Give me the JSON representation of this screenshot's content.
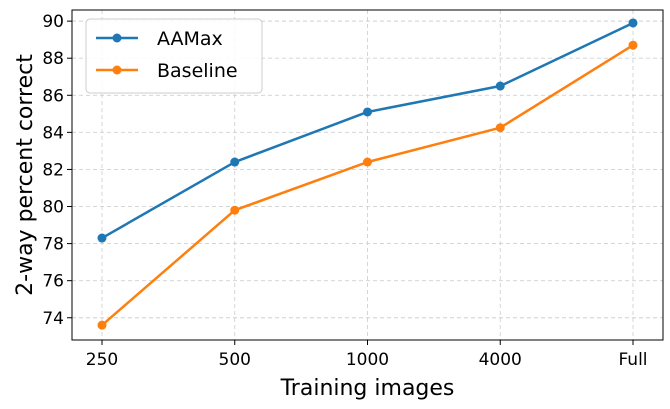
{
  "chart_data": {
    "type": "line",
    "categories": [
      "250",
      "500",
      "1000",
      "4000",
      "Full"
    ],
    "series": [
      {
        "name": "AAMax",
        "values": [
          78.3,
          82.4,
          85.1,
          86.5,
          89.9
        ],
        "color": "#1f77b4"
      },
      {
        "name": "Baseline",
        "values": [
          73.6,
          79.8,
          82.4,
          84.25,
          88.7
        ],
        "color": "#ff7f0e"
      }
    ],
    "xlabel": "Training images",
    "ylabel": "2-way percent correct",
    "ylim": [
      72.8,
      90.6
    ],
    "yticks": [
      74,
      76,
      78,
      80,
      82,
      84,
      86,
      88,
      90
    ],
    "grid": true,
    "legend_position": "top-left"
  }
}
